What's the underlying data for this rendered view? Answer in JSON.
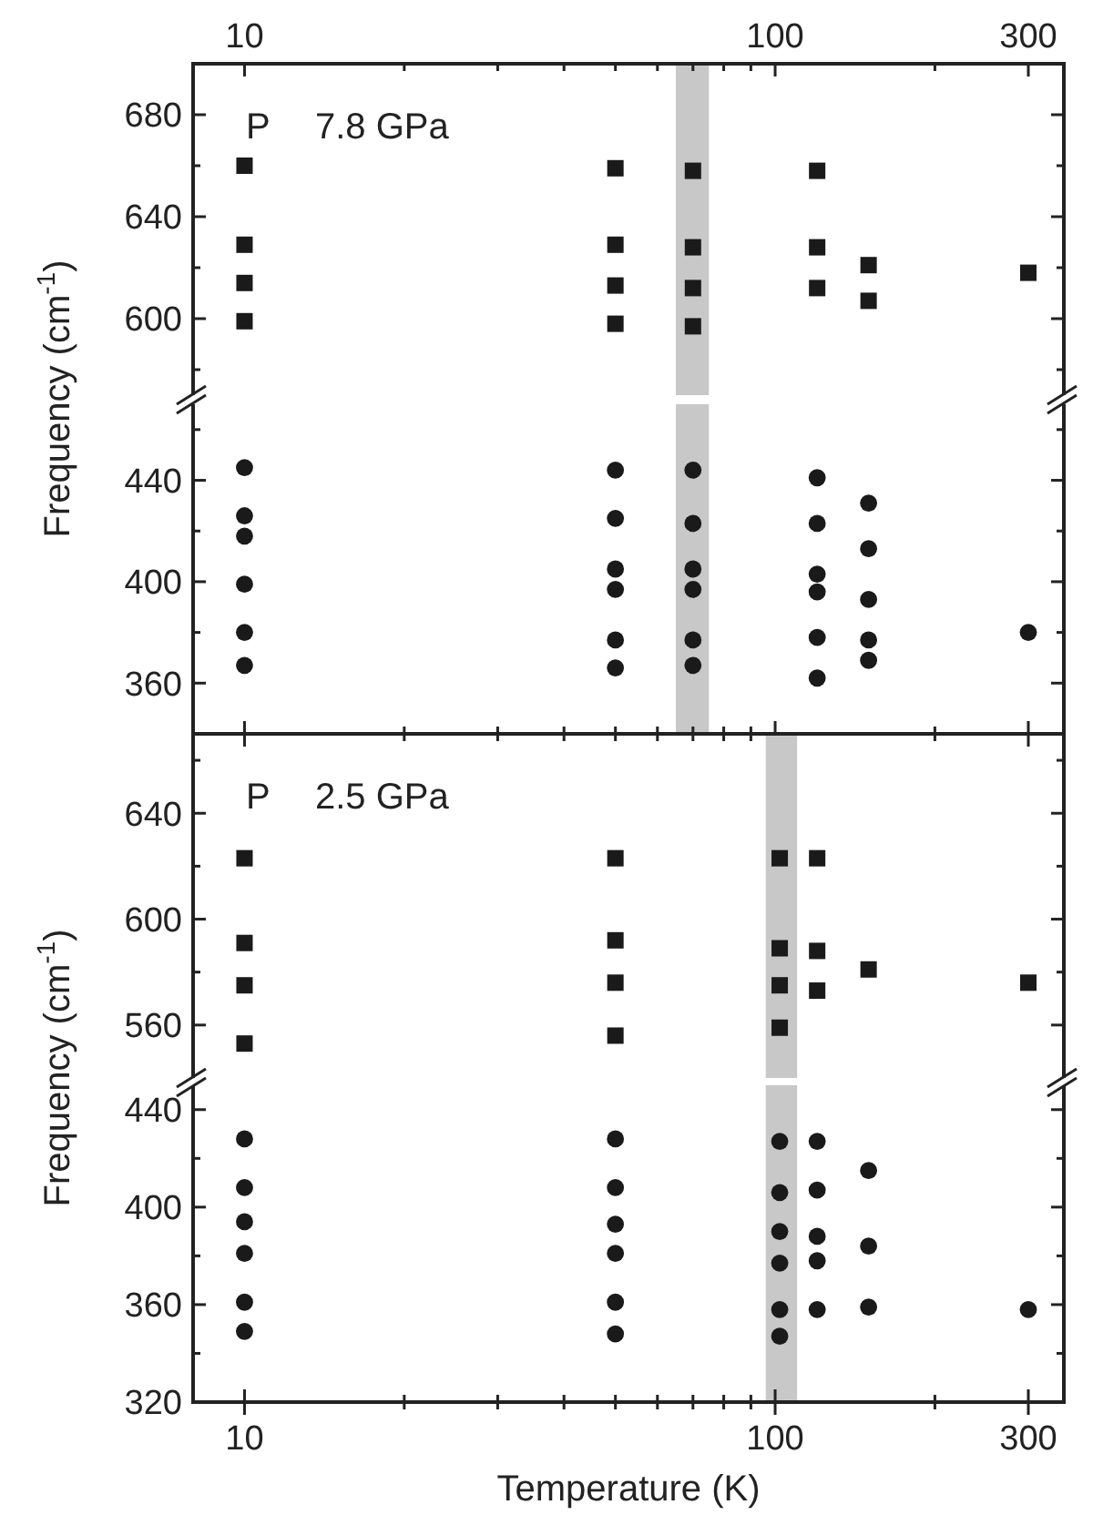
{
  "chart_data": [
    {
      "type": "scatter",
      "ylabel": "Frequency (cm$^{-1}$)",
      "annotations": [
        "P",
        "7.8 GPa"
      ],
      "log": "x",
      "xlim": [
        8,
        350
      ],
      "xticks": [
        10,
        {
          "value": 20,
          "label": null
        },
        {
          "value": 30,
          "label": null
        },
        {
          "value": 40,
          "label": null
        },
        {
          "value": 50,
          "label": null
        },
        {
          "value": 60,
          "label": null
        },
        {
          "value": 70,
          "label": null
        },
        {
          "value": 80,
          "label": null
        },
        {
          "value": 90,
          "label": null
        },
        100,
        {
          "value": 200,
          "label": null
        },
        300
      ],
      "ylim": [
        570,
        700
      ],
      "yticks": [
        {
          "value": 580,
          "label": null
        },
        600,
        {
          "value": 620,
          "label": null
        },
        640,
        {
          "value": 660,
          "label": null
        },
        680
      ],
      "bands": [
        {
          "axis": "x",
          "from": 65,
          "to": 75,
          "color": "#c8c8c8"
        }
      ],
      "series": [
        {
          "type": "scatter",
          "marker": "square",
          "color": "#1a1a1a",
          "x": [
            10,
            10,
            10,
            10,
            50,
            50,
            50,
            50,
            70,
            70,
            70,
            70,
            120,
            120,
            120,
            150,
            150,
            300
          ],
          "values": [
            660,
            629,
            614,
            599,
            659,
            629,
            613,
            598,
            658,
            628,
            612,
            597,
            658,
            628,
            612,
            621,
            607,
            618
          ]
        }
      ]
    },
    {
      "type": "scatter",
      "log": "x",
      "xlim": [
        8,
        350
      ],
      "xticks": [
        10,
        {
          "value": 20,
          "label": null
        },
        {
          "value": 30,
          "label": null
        },
        {
          "value": 40,
          "label": null
        },
        {
          "value": 50,
          "label": null
        },
        {
          "value": 60,
          "label": null
        },
        {
          "value": 70,
          "label": null
        },
        {
          "value": 80,
          "label": null
        },
        {
          "value": 90,
          "label": null
        },
        100,
        {
          "value": 200,
          "label": null
        },
        300
      ],
      "ylim": [
        340,
        470
      ],
      "yticks": [
        360,
        {
          "value": 380,
          "label": null
        },
        400,
        {
          "value": 420,
          "label": null
        },
        440,
        {
          "value": 460,
          "label": null
        }
      ],
      "tick_labels": "y",
      "bands": [
        {
          "axis": "x",
          "from": 65,
          "to": 75,
          "color": "#c8c8c8"
        }
      ],
      "series": [
        {
          "type": "scatter",
          "marker": "circle",
          "color": "#1a1a1a",
          "x": [
            10,
            10,
            10,
            10,
            10,
            10,
            50,
            50,
            50,
            50,
            50,
            50,
            70,
            70,
            70,
            70,
            70,
            70,
            120,
            120,
            120,
            120,
            120,
            120,
            150,
            150,
            150,
            150,
            150,
            300
          ],
          "values": [
            445,
            426,
            418,
            399,
            380,
            367,
            444,
            425,
            405,
            397,
            377,
            366,
            444,
            423,
            405,
            397,
            377,
            367,
            441,
            423,
            403,
            396,
            378,
            362,
            431,
            413,
            393,
            377,
            369,
            380
          ]
        }
      ]
    },
    {
      "type": "scatter",
      "ylabel": "Frequency (cm$^{-1}$)",
      "annotations": [
        "P",
        "2.5 GPa"
      ],
      "log": "x",
      "xlim": [
        8,
        350
      ],
      "ylim": [
        540,
        670
      ],
      "yticks": [
        560,
        {
          "value": 580,
          "label": null
        },
        600,
        {
          "value": 620,
          "label": null
        },
        640,
        {
          "value": 660,
          "label": null
        }
      ],
      "tick_labels": "y",
      "bands": [
        {
          "axis": "x",
          "from": 96,
          "to": 110,
          "color": "#c8c8c8"
        }
      ],
      "series": [
        {
          "type": "scatter",
          "marker": "square",
          "color": "#1a1a1a",
          "x": [
            10,
            10,
            10,
            10,
            50,
            50,
            50,
            50,
            102,
            102,
            102,
            102,
            120,
            120,
            120,
            150,
            300
          ],
          "values": [
            623,
            591,
            575,
            553,
            623,
            592,
            576,
            556,
            623,
            589,
            575,
            559,
            623,
            588,
            573,
            581,
            576
          ]
        }
      ]
    },
    {
      "type": "scatter",
      "xlabel": "Temperature (K)",
      "log": "x",
      "xlim": [
        8,
        350
      ],
      "xticks": [
        10,
        {
          "value": 20,
          "label": null
        },
        {
          "value": 30,
          "label": null
        },
        {
          "value": 40,
          "label": null
        },
        {
          "value": 50,
          "label": null
        },
        {
          "value": 60,
          "label": null
        },
        {
          "value": 70,
          "label": null
        },
        {
          "value": 80,
          "label": null
        },
        {
          "value": 90,
          "label": null
        },
        100,
        {
          "value": 200,
          "label": null
        },
        300
      ],
      "ylim": [
        320,
        450
      ],
      "yticks": [
        320,
        {
          "value": 340,
          "label": null
        },
        360,
        {
          "value": 380,
          "label": null
        },
        400,
        {
          "value": 420,
          "label": null
        },
        440
      ],
      "bands": [
        {
          "axis": "x",
          "from": 96,
          "to": 110,
          "color": "#c8c8c8"
        }
      ],
      "series": [
        {
          "type": "scatter",
          "marker": "circle",
          "color": "#1a1a1a",
          "x": [
            10,
            10,
            10,
            10,
            10,
            10,
            50,
            50,
            50,
            50,
            50,
            50,
            102,
            102,
            102,
            102,
            102,
            102,
            120,
            120,
            120,
            120,
            120,
            150,
            150,
            150,
            300
          ],
          "values": [
            428,
            408,
            394,
            381,
            361,
            349,
            428,
            408,
            393,
            381,
            361,
            348,
            427,
            406,
            390,
            377,
            358,
            347,
            427,
            407,
            388,
            378,
            358,
            415,
            384,
            359,
            358
          ]
        }
      ]
    }
  ]
}
